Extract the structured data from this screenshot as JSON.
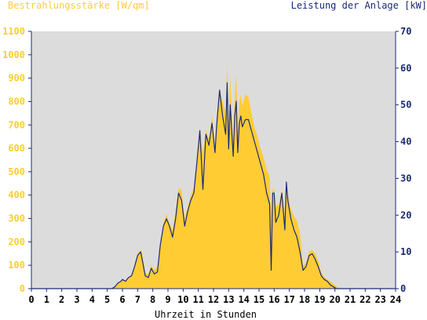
{
  "chart_data": {
    "type": "area",
    "left_axis_label": "Bestrahlungsstärke [W/qm]",
    "right_axis_label": "Leistung der Anlage [kW]",
    "xlabel": "Uhrzeit in Stunden",
    "xlim": [
      0,
      24
    ],
    "ylim_left": [
      0,
      1100
    ],
    "ylim_right": [
      0,
      70
    ],
    "x_ticks": [
      "0",
      "1",
      "2",
      "3",
      "4",
      "5",
      "6",
      "7",
      "8",
      "9",
      "10",
      "11",
      "12",
      "13",
      "14",
      "15",
      "16",
      "17",
      "18",
      "19",
      "20",
      "21",
      "22",
      "23",
      "24"
    ],
    "y_left_ticks": [
      "0",
      "100",
      "200",
      "300",
      "400",
      "500",
      "600",
      "700",
      "800",
      "900",
      "1000",
      "1100"
    ],
    "y_right_ticks": [
      "0",
      "10",
      "20",
      "30",
      "40",
      "50",
      "60",
      "70"
    ],
    "colors": {
      "irradiance_fill": "#ffcc33",
      "power_line": "#1a2a7a",
      "plot_background": "#dcdcdc",
      "left_axis_text": "#ffcc33",
      "right_axis_text": "#1a2a7a",
      "axis_line": "#1a2a7a"
    },
    "series": [
      {
        "axis": "left",
        "x": [
          0,
          5.3,
          5.5,
          5.7,
          5.9,
          6.0,
          6.2,
          6.4,
          6.6,
          6.8,
          7.0,
          7.2,
          7.3,
          7.5,
          7.7,
          7.9,
          8.1,
          8.3,
          8.5,
          8.7,
          8.9,
          9.1,
          9.3,
          9.5,
          9.7,
          9.9,
          10.1,
          10.3,
          10.5,
          10.7,
          10.9,
          11.1,
          11.3,
          11.5,
          11.7,
          11.9,
          12.1,
          12.2,
          12.4,
          12.6,
          12.8,
          12.9,
          13.0,
          13.1,
          13.3,
          13.4,
          13.5,
          13.6,
          13.7,
          13.8,
          13.9,
          14.1,
          14.3,
          14.5,
          14.7,
          14.9,
          15.1,
          15.3,
          15.5,
          15.7,
          15.8,
          15.9,
          16.0,
          16.1,
          16.3,
          16.5,
          16.7,
          16.8,
          16.9,
          17.1,
          17.3,
          17.5,
          17.7,
          17.9,
          18.1,
          18.3,
          18.5,
          18.7,
          18.9,
          19.1,
          19.3,
          19.5,
          19.7,
          19.9,
          20.1,
          20.3,
          24
        ],
        "y": [
          0,
          0,
          10,
          25,
          30,
          40,
          35,
          45,
          60,
          100,
          150,
          165,
          150,
          70,
          60,
          100,
          80,
          90,
          200,
          280,
          320,
          280,
          250,
          330,
          430,
          420,
          300,
          350,
          400,
          430,
          550,
          690,
          580,
          680,
          640,
          740,
          590,
          720,
          860,
          800,
          750,
          960,
          700,
          900,
          620,
          820,
          920,
          650,
          800,
          830,
          780,
          830,
          820,
          750,
          690,
          650,
          600,
          560,
          510,
          480,
          300,
          430,
          420,
          350,
          360,
          420,
          320,
          450,
          400,
          340,
          310,
          290,
          240,
          100,
          110,
          160,
          165,
          150,
          120,
          70,
          50,
          40,
          30,
          20,
          10,
          0,
          0
        ]
      },
      {
        "axis": "right",
        "x": [
          0,
          5.3,
          5.5,
          5.7,
          5.9,
          6.0,
          6.2,
          6.4,
          6.6,
          6.8,
          7.0,
          7.2,
          7.3,
          7.5,
          7.7,
          7.9,
          8.1,
          8.3,
          8.5,
          8.7,
          8.9,
          9.1,
          9.3,
          9.5,
          9.7,
          9.9,
          10.1,
          10.3,
          10.5,
          10.7,
          10.9,
          11.1,
          11.3,
          11.5,
          11.7,
          11.9,
          12.1,
          12.2,
          12.4,
          12.6,
          12.8,
          12.9,
          13.0,
          13.1,
          13.3,
          13.4,
          13.5,
          13.6,
          13.7,
          13.8,
          13.9,
          14.1,
          14.3,
          14.5,
          14.7,
          14.9,
          15.1,
          15.3,
          15.5,
          15.7,
          15.8,
          15.9,
          16.0,
          16.1,
          16.3,
          16.5,
          16.7,
          16.8,
          16.9,
          17.1,
          17.3,
          17.5,
          17.7,
          17.9,
          18.1,
          18.3,
          18.5,
          18.7,
          18.9,
          19.1,
          19.3,
          19.5,
          19.7,
          19.9,
          20.1,
          20.3,
          24
        ],
        "y": [
          0,
          0,
          0.5,
          1.5,
          2,
          2.5,
          2,
          3,
          3.5,
          6,
          9,
          10,
          8,
          3.5,
          3,
          5.5,
          4,
          4.5,
          12,
          17,
          19,
          17,
          14,
          19,
          26,
          24,
          17,
          21,
          24,
          26,
          34,
          43,
          27,
          42,
          39,
          45,
          37,
          44,
          54,
          47,
          42,
          56,
          38,
          50,
          36,
          47,
          51,
          37,
          45,
          47,
          44,
          46,
          46,
          43,
          40,
          37,
          34,
          31,
          26,
          23,
          5,
          26,
          26,
          18,
          20,
          26,
          16,
          29,
          24,
          19,
          16,
          14,
          10,
          5,
          6,
          9,
          9.5,
          8,
          6,
          3.5,
          2.5,
          2,
          1,
          0.5,
          0,
          0,
          0
        ]
      }
    ]
  }
}
